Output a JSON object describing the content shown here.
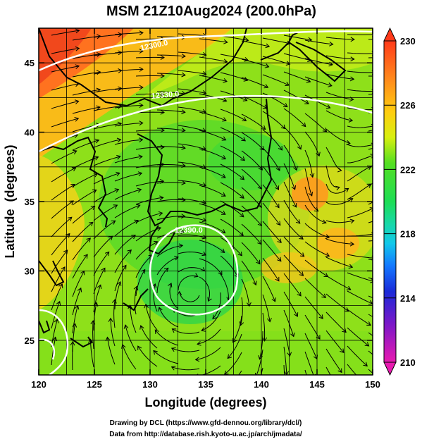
{
  "title": "MSM 21Z10Aug2024 (200.0hPa)",
  "axes": {
    "xlabel": "Longitude (degrees)",
    "ylabel": "Latitude  (degrees)",
    "x_ticks": [
      "120",
      "125",
      "130",
      "135",
      "140",
      "145",
      "150"
    ],
    "y_ticks": [
      "25",
      "30",
      "35",
      "40",
      "45"
    ],
    "xlim": [
      120,
      150
    ],
    "ylim": [
      22.5,
      47.5
    ]
  },
  "colorbar": {
    "ticks": [
      "230",
      "226",
      "222",
      "218",
      "214",
      "210"
    ],
    "range": [
      210,
      230
    ]
  },
  "contours": {
    "labels": [
      "12300.0",
      "12330.0",
      "12390.0"
    ]
  },
  "credits": {
    "line1": "Drawing by DCL (https://www.gfd-dennou.org/library/dcl/)",
    "line2": "Data from http://database.rish.kyoto-u.ac.jp/arch/jmadata/"
  }
}
